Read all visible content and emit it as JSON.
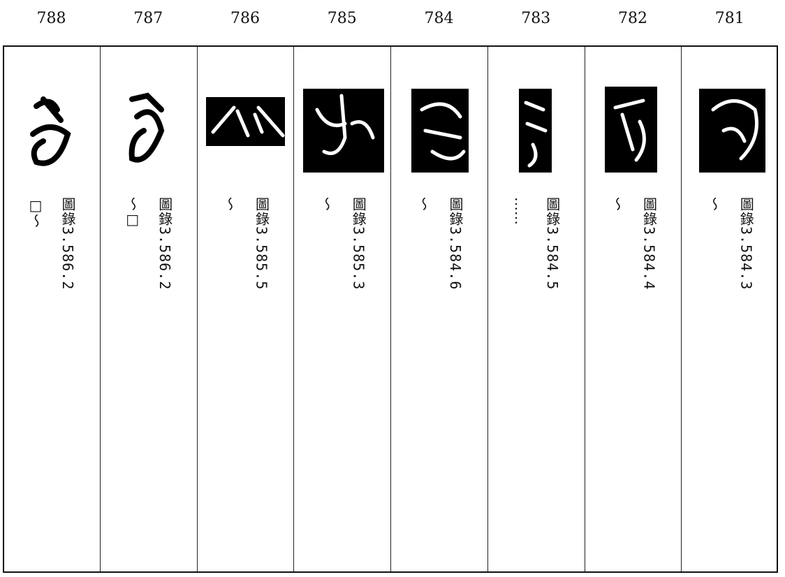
{
  "columns": [
    {
      "number": "788",
      "source": "圖錄3.586.2",
      "note": "□～"
    },
    {
      "number": "787",
      "source": "圖錄3.586.2",
      "note": "～□"
    },
    {
      "number": "786",
      "source": "圖錄3.585.5",
      "note": "～"
    },
    {
      "number": "785",
      "source": "圖錄3.585.3",
      "note": "～"
    },
    {
      "number": "784",
      "source": "圖錄3.584.6",
      "note": "～"
    },
    {
      "number": "783",
      "source": "圖錄3.584.5",
      "note": "……"
    },
    {
      "number": "782",
      "source": "圖錄3.584.4",
      "note": "～"
    },
    {
      "number": "781",
      "source": "圖錄3.584.3",
      "note": "～"
    }
  ]
}
